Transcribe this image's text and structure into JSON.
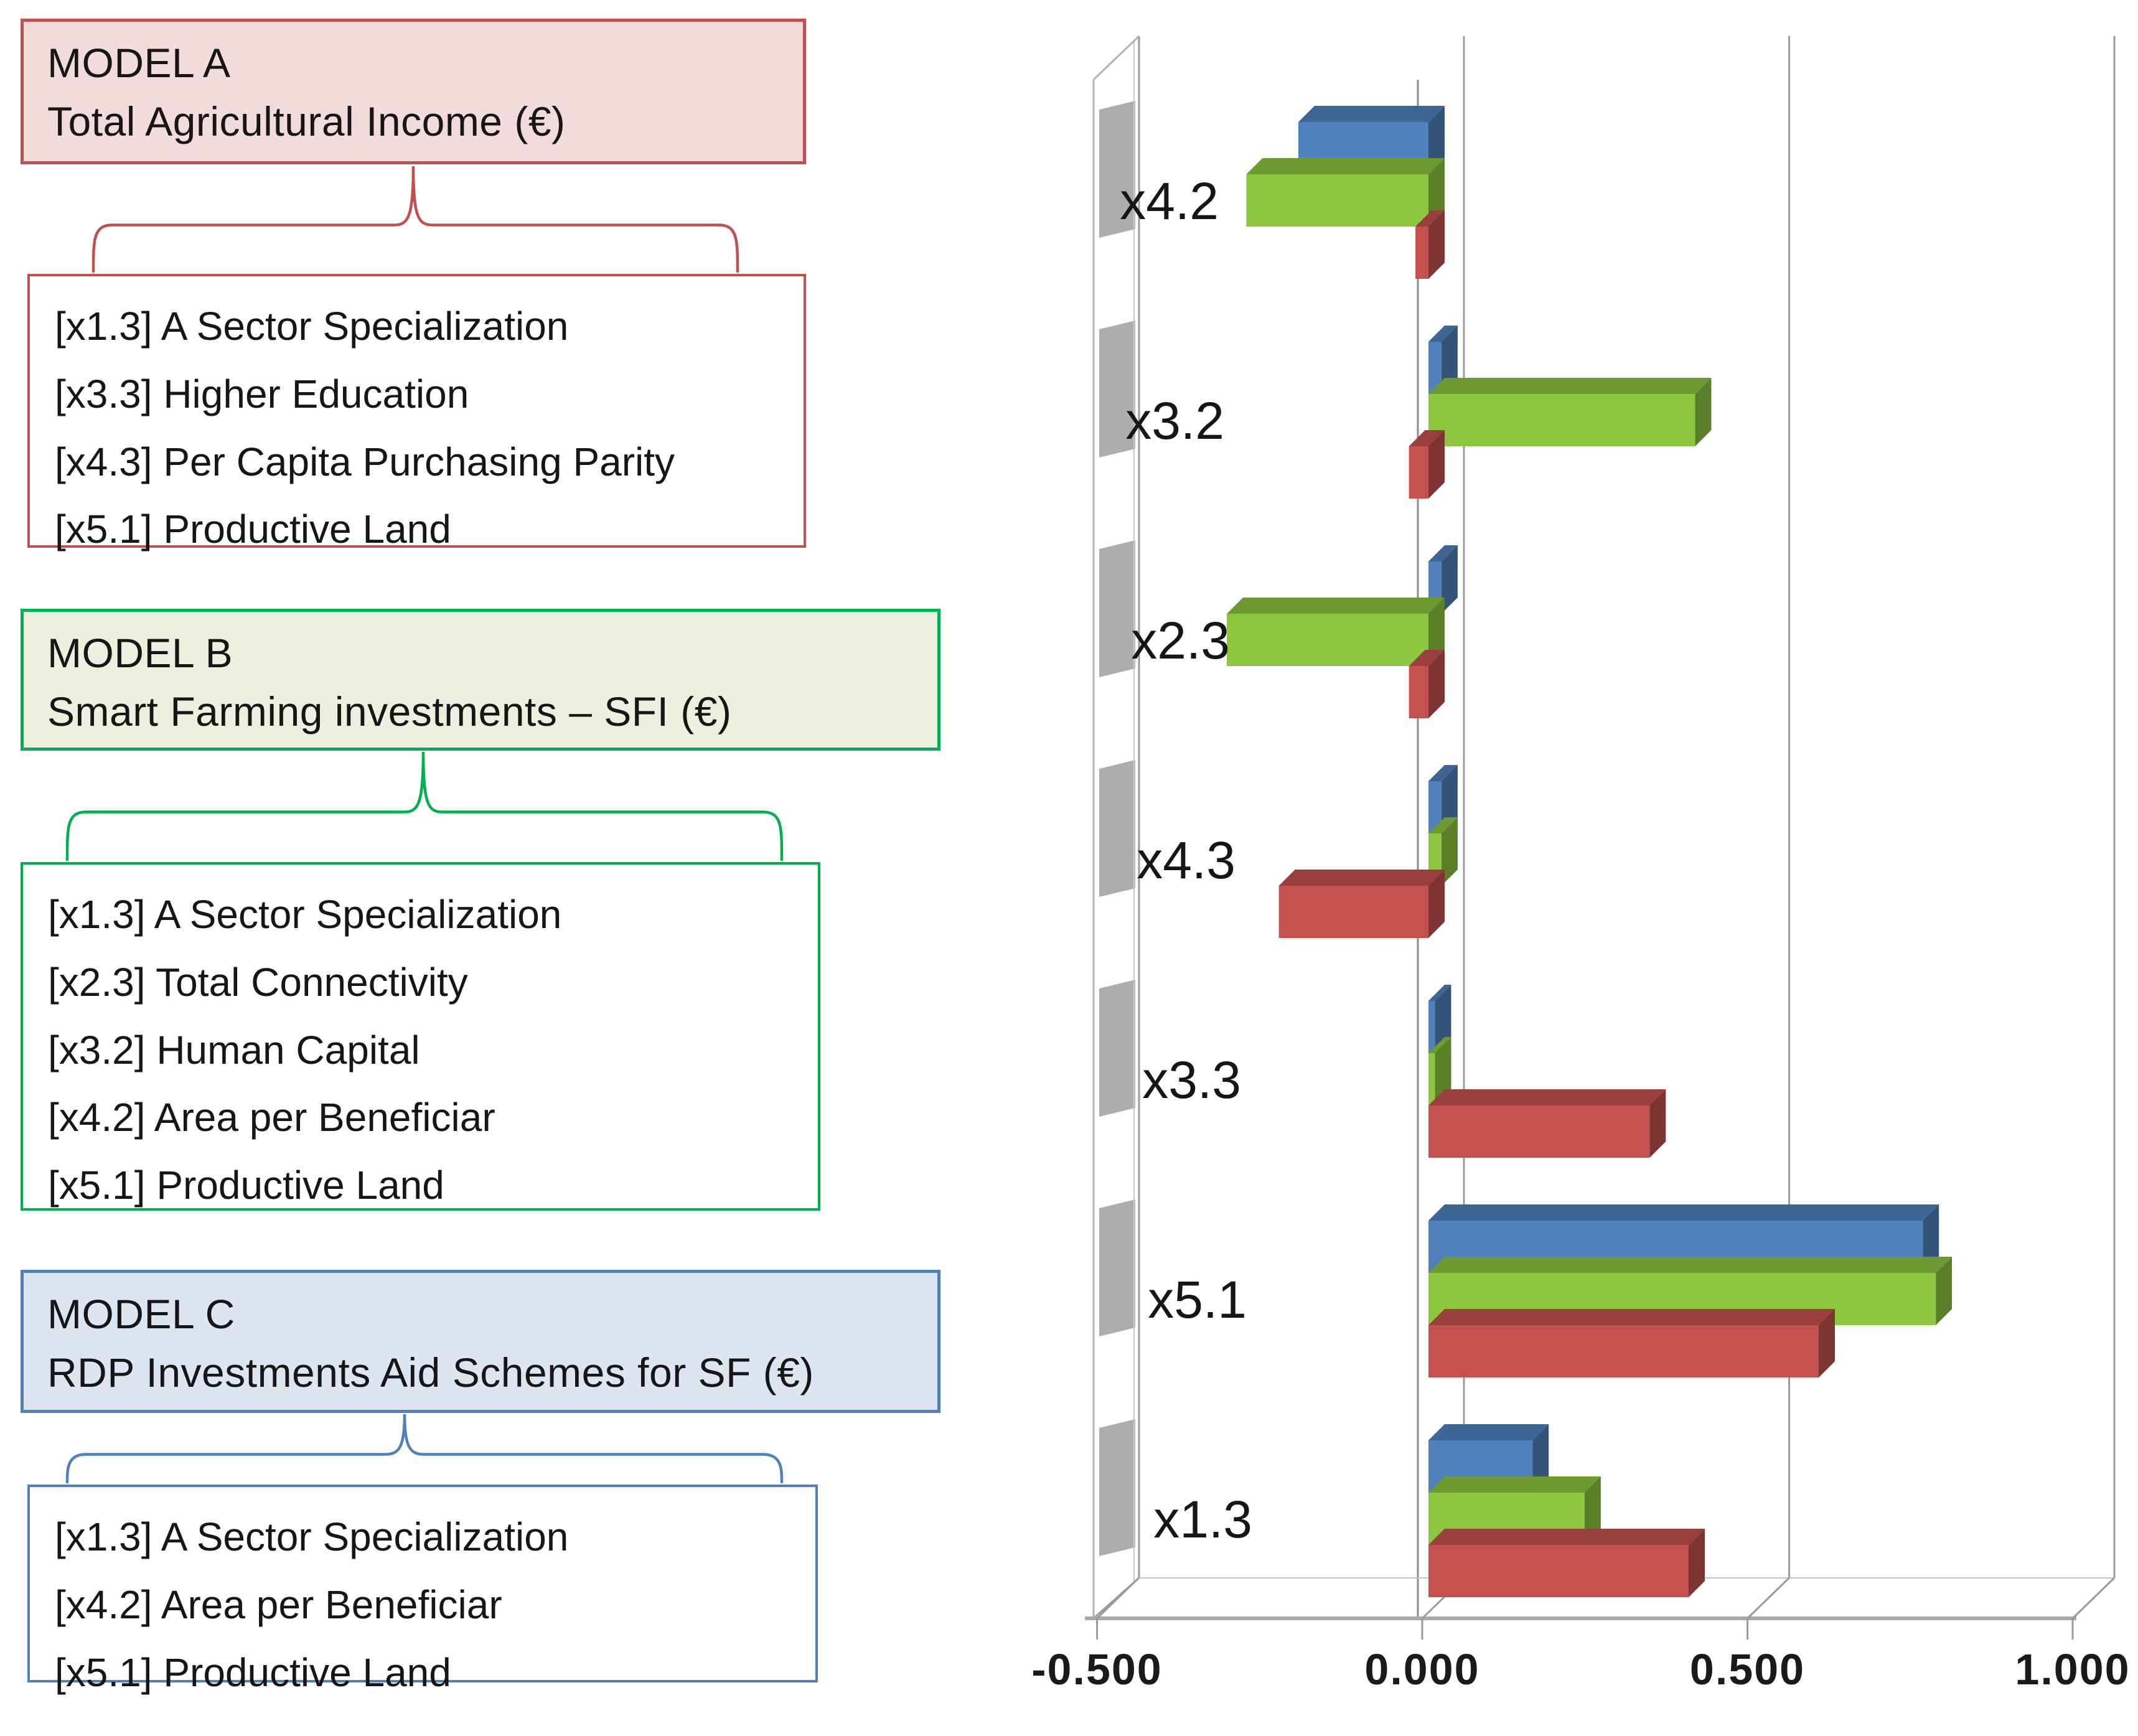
{
  "figure": {
    "background": "#ffffff",
    "description_visible_text_only": true
  },
  "models": [
    {
      "title": "MODEL A",
      "subtitle": "Total Agricultural Income (€)",
      "accent": "#C0504D",
      "fill": "#F2DCDB",
      "variables": [
        "[x1.3] A Sector Specialization",
        "[x3.3] Higher Education",
        "[x4.3] Per Capita Purchasing Parity",
        "[x5.1] Productive Land"
      ]
    },
    {
      "title": "MODEL B",
      "subtitle": "Smart Farming investments – SFI (€)",
      "accent": "#00B050",
      "fill": "#EBF1DE",
      "variables": [
        "[x1.3] A Sector Specialization",
        "[x2.3] Total Connectivity",
        "[x3.2] Human Capital",
        "[x4.2] Area per Beneficiar",
        "[x5.1] Productive Land"
      ]
    },
    {
      "title": "MODEL C",
      "subtitle": "RDP Investments Aid Schemes for SF (€)",
      "accent": "#4F81BD",
      "fill": "#DCE6F1",
      "variables": [
        "[x1.3] A Sector Specialization",
        "[x4.2] Area per Beneficiar",
        "[x5.1] Productive Land"
      ]
    }
  ],
  "chart_data": {
    "type": "bar",
    "orientation": "horizontal-3d",
    "title": "",
    "xlabel": "",
    "ylabel": "",
    "categories": [
      "x4.2",
      "x3.2",
      "x2.3",
      "x4.3",
      "x3.3",
      "x5.1",
      "x1.3"
    ],
    "series": [
      {
        "name": "blue",
        "color": "#4F81BD",
        "values": [
          -0.2,
          0.02,
          0.02,
          0.02,
          0.01,
          0.76,
          0.16
        ]
      },
      {
        "name": "green",
        "color": "#8DC63F",
        "values": [
          -0.28,
          0.41,
          -0.31,
          0.02,
          0.01,
          0.78,
          0.24
        ]
      },
      {
        "name": "red",
        "color": "#C4514E",
        "values": [
          -0.02,
          -0.03,
          -0.03,
          -0.23,
          0.34,
          0.6,
          0.4
        ]
      }
    ],
    "xticks": [
      {
        "label": "-0.500",
        "value": -0.5
      },
      {
        "label": "0.000",
        "value": 0.0
      },
      {
        "label": "0.500",
        "value": 0.5
      },
      {
        "label": "1.000",
        "value": 1.0
      }
    ],
    "xlim": [
      -0.5,
      1.0
    ],
    "grid": true,
    "legend": false,
    "gridline_color": "#9a9a9a",
    "wall_color": "#a6a6a6"
  }
}
